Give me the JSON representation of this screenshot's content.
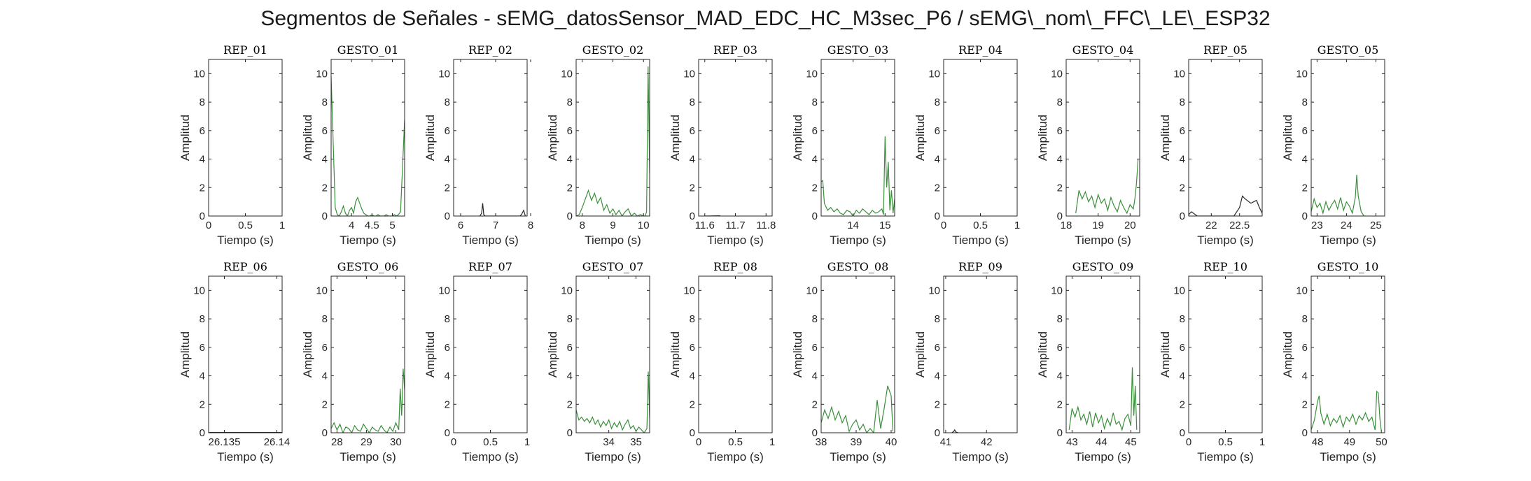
{
  "chart_data": {
    "type": "line",
    "title": "Segmentos de Señales - sEMG_datosSensor_MAD_EDC_HC_M3sec_P6 / sEMG\\_nom\\_FFC\\_LE\\_ESP32",
    "xlabel": "Tiempo (s)",
    "ylabel": "Amplitud",
    "ylim": [
      0,
      11
    ],
    "yticks": [
      0,
      2,
      4,
      6,
      8,
      10
    ],
    "colors": {
      "rep": "#262626",
      "gesto": "#3a8f3a",
      "axis": "#262626"
    },
    "panels": [
      {
        "name": "REP_01",
        "kind": "rep",
        "xlim": [
          0,
          1
        ],
        "xticks": [
          0,
          0.5,
          1
        ],
        "x": [],
        "y": []
      },
      {
        "name": "GESTO_01",
        "kind": "gesto",
        "xlim": [
          3.5,
          5.3
        ],
        "xticks": [
          4,
          4.5,
          5
        ],
        "x": [
          3.5,
          3.55,
          3.6,
          3.65,
          3.7,
          3.75,
          3.8,
          3.85,
          3.9,
          3.95,
          4.0,
          4.05,
          4.1,
          4.15,
          4.2,
          4.25,
          4.3,
          4.35,
          4.4,
          4.45,
          4.5,
          4.55,
          4.6,
          4.65,
          4.7,
          4.75,
          4.8,
          4.85,
          4.9,
          4.95,
          5.0,
          5.05,
          5.1,
          5.15,
          5.2,
          5.25,
          5.3
        ],
        "y": [
          9.8,
          5.2,
          0.6,
          0.1,
          0.0,
          0.3,
          0.7,
          0.2,
          0.0,
          0.4,
          0.6,
          0.2,
          1.0,
          1.3,
          0.9,
          0.5,
          0.2,
          0.1,
          0.0,
          0.0,
          0.1,
          0.0,
          0.0,
          0.1,
          0.0,
          0.0,
          0.0,
          0.1,
          0.0,
          0.0,
          0.0,
          0.1,
          0.0,
          0.1,
          0.3,
          3.5,
          6.8
        ]
      },
      {
        "name": "REP_02",
        "kind": "rep",
        "xlim": [
          5.8,
          7.9
        ],
        "xticks": [
          6,
          7,
          8
        ],
        "x": [
          6.55,
          6.6,
          6.63,
          6.66,
          6.7,
          7.7,
          7.75,
          7.8,
          7.85
        ],
        "y": [
          0.0,
          0.2,
          0.9,
          0.1,
          0.0,
          0.0,
          0.15,
          0.4,
          0.0
        ]
      },
      {
        "name": "GESTO_02",
        "kind": "gesto",
        "xlim": [
          7.8,
          10.2
        ],
        "xticks": [
          8,
          9,
          10
        ],
        "x": [
          7.8,
          7.9,
          8.0,
          8.1,
          8.2,
          8.3,
          8.4,
          8.5,
          8.6,
          8.7,
          8.8,
          8.9,
          9.0,
          9.1,
          9.2,
          9.3,
          9.4,
          9.5,
          9.6,
          9.7,
          9.8,
          9.9,
          10.0,
          10.05,
          10.1,
          10.15,
          10.2
        ],
        "y": [
          0.0,
          0.1,
          0.6,
          1.2,
          1.8,
          1.1,
          1.6,
          0.9,
          1.3,
          0.4,
          0.8,
          0.2,
          0.5,
          0.1,
          0.4,
          0.0,
          0.3,
          0.5,
          0.0,
          0.2,
          0.0,
          0.1,
          0.0,
          0.0,
          0.3,
          10.5,
          3.0
        ]
      },
      {
        "name": "REP_03",
        "kind": "rep",
        "xlim": [
          11.58,
          11.82
        ],
        "xticks": [
          11.6,
          11.7,
          11.8
        ],
        "x": [
          11.6,
          11.65
        ],
        "y": [
          0.0,
          0.02
        ]
      },
      {
        "name": "GESTO_03",
        "kind": "gesto",
        "xlim": [
          13.0,
          15.3
        ],
        "xticks": [
          14,
          15
        ],
        "x": [
          13.0,
          13.05,
          13.1,
          13.2,
          13.3,
          13.4,
          13.5,
          13.6,
          13.7,
          13.8,
          13.9,
          14.0,
          14.1,
          14.2,
          14.3,
          14.4,
          14.5,
          14.6,
          14.7,
          14.8,
          14.9,
          14.95,
          15.0,
          15.05,
          15.1,
          15.15,
          15.2,
          15.25,
          15.3
        ],
        "y": [
          2.4,
          2.5,
          0.9,
          0.4,
          0.6,
          0.3,
          0.5,
          0.2,
          0.1,
          0.4,
          0.3,
          0.0,
          0.4,
          0.2,
          0.5,
          0.3,
          0.1,
          0.4,
          0.2,
          0.3,
          0.5,
          0.1,
          5.6,
          2.0,
          3.8,
          0.4,
          1.8,
          0.2,
          1.2
        ]
      },
      {
        "name": "REP_04",
        "kind": "rep",
        "xlim": [
          0,
          1
        ],
        "xticks": [
          0,
          0.5,
          1
        ],
        "x": [],
        "y": []
      },
      {
        "name": "GESTO_04",
        "kind": "gesto",
        "xlim": [
          18.0,
          20.3
        ],
        "xticks": [
          18,
          19,
          20
        ],
        "x": [
          18.3,
          18.4,
          18.5,
          18.6,
          18.7,
          18.8,
          18.9,
          19.0,
          19.1,
          19.2,
          19.3,
          19.4,
          19.5,
          19.6,
          19.7,
          19.8,
          19.9,
          20.0,
          20.1,
          20.15,
          20.2,
          20.25,
          20.3
        ],
        "y": [
          0.2,
          1.8,
          1.2,
          1.7,
          1.0,
          1.4,
          0.6,
          1.5,
          0.9,
          1.2,
          0.4,
          1.3,
          0.7,
          0.3,
          1.1,
          0.6,
          0.2,
          0.8,
          0.5,
          1.2,
          2.3,
          4.0,
          4.0
        ]
      },
      {
        "name": "REP_05",
        "kind": "rep",
        "xlim": [
          21.6,
          22.9
        ],
        "xticks": [
          22,
          22.5
        ],
        "x": [
          21.6,
          21.65,
          21.7,
          21.75,
          22.3,
          22.4,
          22.5,
          22.55,
          22.6,
          22.7,
          22.8,
          22.85,
          22.9
        ],
        "y": [
          0.1,
          0.3,
          0.15,
          0.0,
          0.0,
          0.0,
          0.6,
          1.4,
          1.2,
          0.9,
          1.1,
          0.6,
          0.2
        ]
      },
      {
        "name": "GESTO_05",
        "kind": "gesto",
        "xlim": [
          22.8,
          25.3
        ],
        "xticks": [
          23,
          24,
          25
        ],
        "x": [
          22.8,
          22.9,
          23.0,
          23.1,
          23.2,
          23.3,
          23.4,
          23.5,
          23.6,
          23.7,
          23.8,
          23.9,
          24.0,
          24.1,
          24.2,
          24.3,
          24.35,
          24.4,
          24.5,
          24.6
        ],
        "y": [
          0.3,
          1.2,
          0.6,
          0.9,
          0.2,
          1.0,
          0.4,
          0.8,
          1.1,
          0.5,
          1.3,
          0.4,
          1.0,
          0.7,
          0.2,
          1.3,
          2.9,
          1.4,
          0.3,
          0.0
        ]
      },
      {
        "name": "REP_06",
        "kind": "rep",
        "xlim": [
          26.1335,
          26.1405
        ],
        "xticks": [
          26.135,
          26.14
        ],
        "x": [
          26.1335,
          26.1405
        ],
        "y": [
          0.02,
          0.02
        ]
      },
      {
        "name": "GESTO_06",
        "kind": "gesto",
        "xlim": [
          27.8,
          30.3
        ],
        "xticks": [
          28,
          29,
          30
        ],
        "x": [
          27.8,
          27.9,
          28.0,
          28.1,
          28.2,
          28.3,
          28.4,
          28.5,
          28.6,
          28.7,
          28.8,
          28.9,
          29.0,
          29.1,
          29.2,
          29.3,
          29.4,
          29.5,
          29.6,
          29.7,
          29.8,
          29.9,
          30.0,
          30.1,
          30.15,
          30.2,
          30.25,
          30.3
        ],
        "y": [
          0.3,
          0.7,
          0.2,
          0.6,
          0.0,
          0.4,
          0.3,
          0.0,
          0.5,
          0.2,
          0.1,
          0.6,
          0.3,
          0.0,
          0.4,
          0.2,
          0.1,
          0.5,
          0.2,
          0.0,
          0.4,
          0.1,
          0.7,
          0.2,
          3.1,
          1.2,
          4.5,
          3.0
        ]
      },
      {
        "name": "REP_07",
        "kind": "rep",
        "xlim": [
          0,
          1
        ],
        "xticks": [
          0,
          0.5,
          1
        ],
        "x": [],
        "y": []
      },
      {
        "name": "GESTO_07",
        "kind": "gesto",
        "xlim": [
          32.8,
          35.5
        ],
        "xticks": [
          34,
          35
        ],
        "x": [
          32.8,
          32.9,
          33.0,
          33.1,
          33.2,
          33.3,
          33.4,
          33.5,
          33.6,
          33.7,
          33.8,
          33.9,
          34.0,
          34.1,
          34.2,
          34.3,
          34.4,
          34.5,
          34.6,
          34.7,
          34.8,
          34.9,
          35.0,
          35.1,
          35.2,
          35.3,
          35.4,
          35.45,
          35.5
        ],
        "y": [
          1.6,
          0.9,
          1.1,
          0.8,
          1.0,
          0.7,
          1.1,
          0.6,
          0.9,
          0.4,
          0.8,
          0.5,
          0.9,
          0.3,
          0.7,
          0.4,
          0.8,
          0.2,
          0.6,
          0.9,
          0.3,
          0.5,
          0.1,
          0.4,
          0.2,
          0.0,
          0.3,
          4.3,
          1.0
        ]
      },
      {
        "name": "REP_08",
        "kind": "rep",
        "xlim": [
          0,
          1
        ],
        "xticks": [
          0,
          0.5,
          1
        ],
        "x": [],
        "y": []
      },
      {
        "name": "GESTO_08",
        "kind": "gesto",
        "xlim": [
          38.0,
          40.1
        ],
        "xticks": [
          38,
          39,
          40
        ],
        "x": [
          38.0,
          38.1,
          38.2,
          38.3,
          38.4,
          38.5,
          38.6,
          38.7,
          38.8,
          38.9,
          39.0,
          39.1,
          39.2,
          39.3,
          39.4,
          39.5,
          39.6,
          39.7,
          39.8,
          39.9,
          40.0,
          40.05
        ],
        "y": [
          0.7,
          1.6,
          1.0,
          1.8,
          0.9,
          1.5,
          0.7,
          1.2,
          0.1,
          0.6,
          0.9,
          0.2,
          0.6,
          0.0,
          0.3,
          0.0,
          2.3,
          0.3,
          1.7,
          3.3,
          2.6,
          0.1
        ]
      },
      {
        "name": "REP_09",
        "kind": "rep",
        "xlim": [
          40.95,
          42.75
        ],
        "xticks": [
          41,
          42
        ],
        "x": [
          41.15,
          41.2,
          41.22,
          41.25,
          41.3
        ],
        "y": [
          0.0,
          0.1,
          0.2,
          0.05,
          0.0
        ]
      },
      {
        "name": "GESTO_09",
        "kind": "gesto",
        "xlim": [
          42.8,
          45.3
        ],
        "xticks": [
          43,
          44,
          45
        ],
        "x": [
          42.9,
          43.0,
          43.1,
          43.2,
          43.3,
          43.4,
          43.5,
          43.6,
          43.7,
          43.8,
          43.9,
          44.0,
          44.1,
          44.2,
          44.3,
          44.4,
          44.5,
          44.6,
          44.7,
          44.8,
          44.9,
          45.0,
          45.05,
          45.1,
          45.15,
          45.2
        ],
        "y": [
          0.2,
          1.7,
          1.1,
          1.8,
          0.9,
          1.3,
          0.6,
          1.5,
          0.4,
          1.4,
          0.7,
          1.2,
          0.3,
          1.0,
          0.5,
          1.4,
          0.6,
          0.8,
          0.2,
          1.0,
          1.3,
          0.5,
          4.6,
          1.2,
          3.3,
          0.2
        ]
      },
      {
        "name": "REP_10",
        "kind": "rep",
        "xlim": [
          0,
          1
        ],
        "xticks": [
          0,
          0.5,
          1
        ],
        "x": [],
        "y": []
      },
      {
        "name": "GESTO_10",
        "kind": "gesto",
        "xlim": [
          47.8,
          50.1
        ],
        "xticks": [
          48,
          49,
          50
        ],
        "x": [
          47.8,
          47.9,
          48.0,
          48.05,
          48.1,
          48.2,
          48.3,
          48.4,
          48.5,
          48.6,
          48.7,
          48.8,
          48.9,
          49.0,
          49.1,
          49.2,
          49.3,
          49.4,
          49.5,
          49.6,
          49.7,
          49.8,
          49.85,
          49.9,
          49.95,
          50.0
        ],
        "y": [
          0.2,
          0.9,
          2.2,
          2.6,
          1.4,
          0.6,
          1.3,
          0.5,
          1.0,
          0.7,
          1.2,
          0.4,
          1.1,
          0.8,
          1.3,
          0.6,
          1.2,
          0.9,
          1.4,
          0.8,
          1.1,
          0.2,
          2.9,
          2.8,
          1.0,
          0.0
        ]
      }
    ]
  }
}
